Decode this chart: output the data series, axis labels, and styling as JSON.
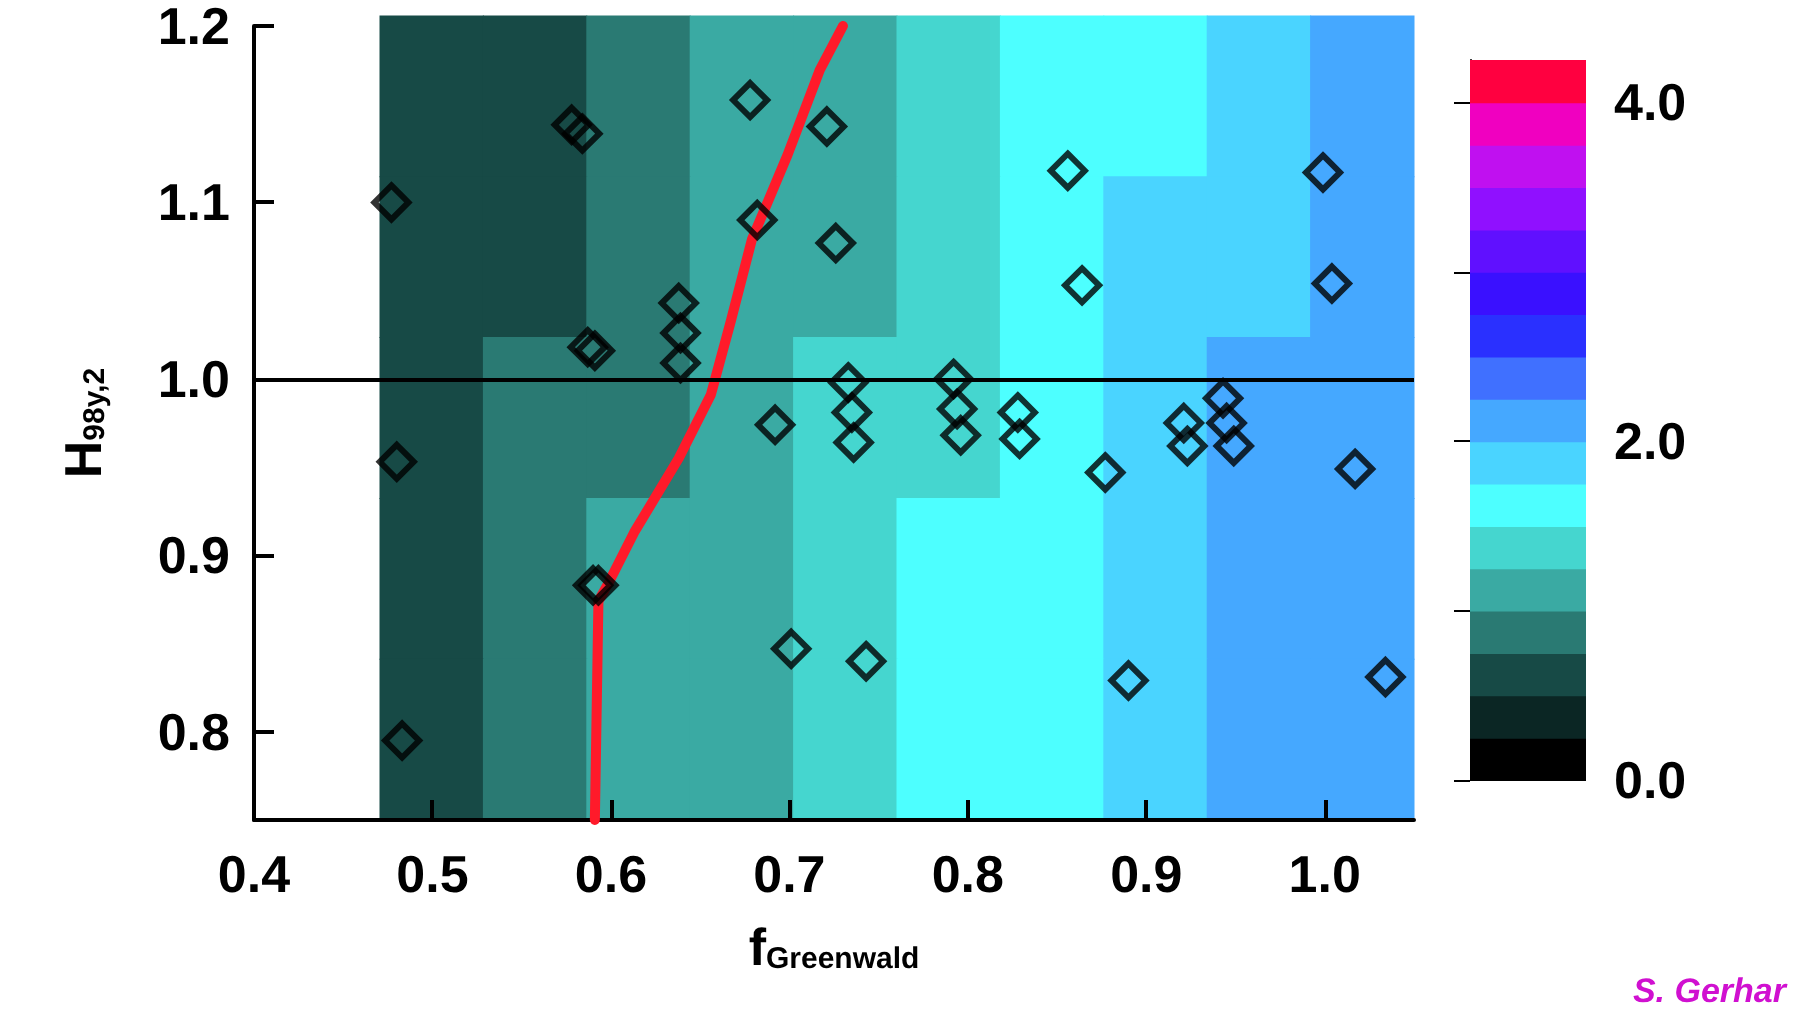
{
  "chart_data": [
    {
      "type": "heatmap",
      "categories": [
        null,
        null,
        null,
        null,
        null,
        null,
        null,
        null,
        null,
        null
      ],
      "y_categories": [
        null,
        null,
        null,
        null,
        null
      ],
      "cells": [
        [
          0.5,
          0.7,
          0.8,
          1.0,
          1.2,
          1.4,
          1.5,
          1.7,
          1.9,
          2.1
        ],
        [
          0.5,
          0.7,
          0.9,
          1.1,
          1.2,
          1.4,
          1.6,
          1.8,
          1.9,
          2.1
        ],
        [
          0.6,
          0.8,
          0.9,
          1.1,
          1.3,
          1.4,
          1.6,
          1.8,
          2.0,
          2.1
        ],
        [
          0.6,
          0.8,
          1.0,
          1.1,
          1.3,
          1.5,
          1.7,
          1.8,
          2.0,
          2.2
        ],
        [
          0.7,
          0.8,
          1.0,
          1.2,
          1.4,
          1.5,
          1.7,
          1.9,
          2.1,
          2.2
        ]
      ],
      "clim": [
        0,
        4.25
      ],
      "cticks": [
        {
          "value": 0,
          "label": "0.0"
        },
        {
          "value": 1,
          "label": null
        },
        {
          "value": 2,
          "label": "2.0"
        },
        {
          "value": 3,
          "label": null
        },
        {
          "value": 4,
          "label": "4.0"
        }
      ]
    },
    {
      "type": "scatter",
      "marker": "diamond",
      "xlabel": "f$_{Greenwald}$",
      "ylabel": "H$_{98y,2}$",
      "xlim": [
        0.4,
        1.05
      ],
      "xticks": [
        0.4,
        0.5,
        0.6,
        0.7,
        0.8,
        0.9,
        {
          "value": 1,
          "label": "1.0"
        }
      ],
      "ylim": [
        0.75,
        1.2
      ],
      "yticks": [
        0.8,
        0.9,
        {
          "value": 1,
          "label": "1.0"
        },
        1.1,
        1.2
      ],
      "series": [
        {
          "color": "#000000",
          "x": [
            0.477,
            0.48,
            0.483,
            0.578,
            0.584,
            0.587,
            0.591,
            0.59,
            0.593,
            0.678,
            0.682,
            0.721,
            0.726,
            0.638,
            0.639,
            0.639,
            0.692,
            0.701,
            0.733,
            0.735,
            0.736,
            0.743,
            0.792,
            0.794,
            0.796,
            0.828,
            0.829,
            0.856,
            0.864,
            0.877,
            0.89,
            0.921,
            0.923,
            0.943,
            0.945,
            0.949,
            0.999,
            1.004,
            1.017,
            1.034
          ],
          "values": [
            1.1,
            0.953,
            0.795,
            1.144,
            1.139,
            1.018,
            1.016,
            0.883,
            0.883,
            1.158,
            1.09,
            1.143,
            1.077,
            1.043,
            1.026,
            1.009,
            0.974,
            0.847,
            0.998,
            0.981,
            0.964,
            0.84,
            1.0,
            0.983,
            0.968,
            0.981,
            0.966,
            1.118,
            1.053,
            0.947,
            0.829,
            0.975,
            0.962,
            0.989,
            0.975,
            0.962,
            1.117,
            1.054,
            0.949,
            0.831
          ]
        },
        {
          "type": "line",
          "color": "#ff1a2a",
          "marker": "none",
          "x": [
            0.591,
            0.593,
            0.599,
            0.613,
            0.638,
            0.656,
            0.667,
            0.679,
            0.699,
            0.717,
            0.73
          ],
          "values": [
            0.75,
            0.874,
            0.885,
            0.913,
            0.955,
            0.991,
            1.032,
            1.079,
            1.127,
            1.175,
            1.2
          ]
        }
      ],
      "ref_lines": [
        {
          "axis": "y",
          "value": 1,
          "label": null,
          "color": "#000000"
        }
      ],
      "annotations": [
        "S. Gerhar"
      ]
    }
  ]
}
